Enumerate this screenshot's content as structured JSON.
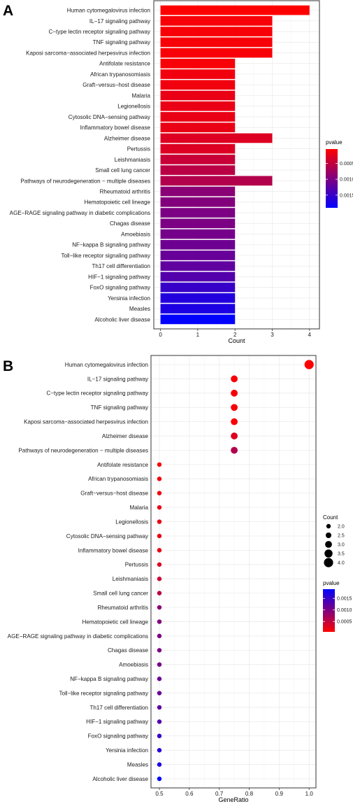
{
  "panel_labels": [
    "A",
    "B"
  ],
  "colors": {
    "low_p": "#ff0000",
    "high_p": "#0000ff",
    "panel_bg": "#ffffff",
    "grid": "#ebebeb",
    "border": "#333333",
    "text": "#1a1a1a"
  },
  "chart_data": [
    {
      "type": "bar",
      "orientation": "horizontal",
      "panel": "A",
      "categories": [
        "Human cytomegalovirus infection",
        "IL−17 signaling pathway",
        "C−type lectin receptor signaling pathway",
        "TNF signaling pathway",
        "Kaposi sarcoma−associated herpesvirus infection",
        "Antifolate resistance",
        "African trypanosomiasis",
        "Graft−versus−host disease",
        "Malaria",
        "Legionellosis",
        "Cytosolic DNA−sensing pathway",
        "Inflammatory bowel disease",
        "Alzheimer disease",
        "Pertussis",
        "Leishmaniasis",
        "Small cell lung cancer",
        "Pathways of neurodegeneration − multiple diseases",
        "Rheumatoid arthritis",
        "Hematopoietic cell lineage",
        "AGE−RAGE signaling pathway in diabetic complications",
        "Chagas disease",
        "Amoebiasis",
        "NF−kappa B signaling pathway",
        "Toll−like receptor signaling pathway",
        "Th17 cell differentiation",
        "HIF−1 signaling pathway",
        "FoxO signaling pathway",
        "Yersinia infection",
        "Measles",
        "Alcoholic liver disease"
      ],
      "values": [
        4,
        3,
        3,
        3,
        3,
        2,
        2,
        2,
        2,
        2,
        2,
        2,
        3,
        2,
        2,
        2,
        3,
        2,
        2,
        2,
        2,
        2,
        2,
        2,
        2,
        2,
        2,
        2,
        2,
        2
      ],
      "pvalue": [
        5e-05,
        0.0001,
        0.0001,
        0.0001,
        0.0001,
        0.0001,
        0.00015,
        0.00015,
        0.0002,
        0.0002,
        0.0002,
        0.0002,
        0.0003,
        0.0003,
        0.00045,
        0.00055,
        0.0006,
        0.0009,
        0.00095,
        0.001,
        0.001,
        0.00105,
        0.0011,
        0.00115,
        0.0012,
        0.0013,
        0.0015,
        0.00165,
        0.0017,
        0.0019
      ],
      "xlabel": "Count",
      "ylabel": "",
      "xlim": [
        0,
        4.2
      ],
      "xticks": [
        "0",
        "1",
        "2",
        "3",
        "4"
      ],
      "grid": true,
      "legend": {
        "title": "pvalue",
        "position": "right",
        "ticks": [
          "0.0005",
          "0.0010",
          "0.0015"
        ],
        "tick_values": [
          0.0005,
          0.001,
          0.0015
        ],
        "range": [
          5e-05,
          0.0019
        ],
        "direction": "red-top"
      }
    },
    {
      "type": "scatter",
      "panel": "B",
      "categories": [
        "Human cytomegalovirus infection",
        "IL−17 signaling pathway",
        "C−type lectin receptor signaling pathway",
        "TNF signaling pathway",
        "Kaposi sarcoma−associated herpesvirus infection",
        "Alzheimer disease",
        "Pathways of neurodegeneration − multiple diseases",
        "Antifolate resistance",
        "African trypanosomiasis",
        "Graft−versus−host disease",
        "Malaria",
        "Legionellosis",
        "Cytosolic DNA−sensing pathway",
        "Inflammatory bowel disease",
        "Pertussis",
        "Leishmaniasis",
        "Small cell lung cancer",
        "Rheumatoid arthritis",
        "Hematopoietic cell lineage",
        "AGE−RAGE signaling pathway in diabetic complications",
        "Chagas disease",
        "Amoebiasis",
        "NF−kappa B signaling pathway",
        "Toll−like receptor signaling pathway",
        "Th17 cell differentiation",
        "HIF−1 signaling pathway",
        "FoxO signaling pathway",
        "Yersinia infection",
        "Measles",
        "Alcoholic liver disease"
      ],
      "x": [
        1.0,
        0.75,
        0.75,
        0.75,
        0.75,
        0.75,
        0.75,
        0.5,
        0.5,
        0.5,
        0.5,
        0.5,
        0.5,
        0.5,
        0.5,
        0.5,
        0.5,
        0.5,
        0.5,
        0.5,
        0.5,
        0.5,
        0.5,
        0.5,
        0.5,
        0.5,
        0.5,
        0.5,
        0.5,
        0.5
      ],
      "count": [
        4,
        3,
        3,
        3,
        3,
        3,
        3,
        2,
        2,
        2,
        2,
        2,
        2,
        2,
        2,
        2,
        2,
        2,
        2,
        2,
        2,
        2,
        2,
        2,
        2,
        2,
        2,
        2,
        2,
        2
      ],
      "pvalue": [
        5e-05,
        0.0001,
        0.0001,
        0.0001,
        0.0001,
        0.0003,
        0.0006,
        0.0001,
        0.00015,
        0.00015,
        0.0002,
        0.0002,
        0.0002,
        0.0002,
        0.0003,
        0.00045,
        0.00055,
        0.0009,
        0.00095,
        0.001,
        0.001,
        0.00105,
        0.0011,
        0.00115,
        0.0012,
        0.0013,
        0.0015,
        0.00165,
        0.0017,
        0.0019
      ],
      "xlabel": "GeneRatio",
      "ylabel": "",
      "xlim": [
        0.475,
        1.025
      ],
      "xticks": [
        "0.5",
        "0.6",
        "0.7",
        "0.8",
        "0.9",
        "1.0"
      ],
      "xtick_values": [
        0.5,
        0.6,
        0.7,
        0.8,
        0.9,
        1.0
      ],
      "grid": true,
      "size_legend": {
        "title": "Count",
        "position": "right",
        "ticks": [
          "2.0",
          "2.5",
          "3.0",
          "3.5",
          "4.0"
        ],
        "tick_values": [
          2.0,
          2.5,
          3.0,
          3.5,
          4.0
        ]
      },
      "legend": {
        "title": "pvalue",
        "position": "right",
        "ticks": [
          "0.0015",
          "0.0010",
          "0.0005"
        ],
        "tick_values": [
          0.0015,
          0.001,
          0.0005
        ],
        "range": [
          5e-05,
          0.0019
        ],
        "direction": "blue-top"
      }
    }
  ]
}
